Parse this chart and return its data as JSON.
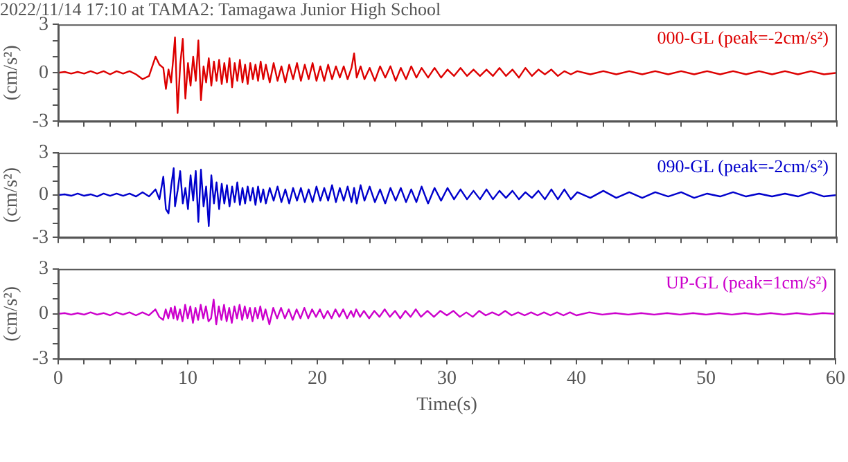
{
  "chart_data": [
    {
      "type": "line",
      "title": "2022/11/14 17:10 at TAMA2: Tamagawa Junior High School",
      "ylabel": "(cm/s²)",
      "annotations": [
        "000-GL (peak=-2cm/s²)"
      ],
      "tick_labels": "y",
      "xlim": [
        0,
        60
      ],
      "ylim": [
        -3,
        3
      ],
      "xticks": [
        0,
        {
          "value": 2,
          "label": null
        },
        {
          "value": 4,
          "label": null
        },
        {
          "value": 6,
          "label": null
        },
        {
          "value": 8,
          "label": null
        },
        10,
        {
          "value": 12,
          "label": null
        },
        {
          "value": 14,
          "label": null
        },
        {
          "value": 16,
          "label": null
        },
        {
          "value": 18,
          "label": null
        },
        20,
        {
          "value": 22,
          "label": null
        },
        {
          "value": 24,
          "label": null
        },
        {
          "value": 26,
          "label": null
        },
        {
          "value": 28,
          "label": null
        },
        30,
        {
          "value": 32,
          "label": null
        },
        {
          "value": 34,
          "label": null
        },
        {
          "value": 36,
          "label": null
        },
        {
          "value": 38,
          "label": null
        },
        40,
        {
          "value": 42,
          "label": null
        },
        {
          "value": 44,
          "label": null
        },
        {
          "value": 46,
          "label": null
        },
        {
          "value": 48,
          "label": null
        },
        50,
        {
          "value": 52,
          "label": null
        },
        {
          "value": 54,
          "label": null
        },
        {
          "value": 56,
          "label": null
        },
        {
          "value": 58,
          "label": null
        },
        60
      ],
      "yticks": [
        -3,
        {
          "value": -2,
          "label": null
        },
        {
          "value": -1,
          "label": null
        },
        0,
        {
          "value": 1,
          "label": null
        },
        {
          "value": 2,
          "label": null
        },
        3
      ],
      "x": [
        0,
        0.5,
        1,
        1.5,
        2,
        2.5,
        3,
        3.5,
        4,
        4.5,
        5,
        5.5,
        6,
        6.5,
        7,
        7.5,
        7.8,
        8.1,
        8.3,
        8.5,
        8.7,
        8.9,
        9,
        9.2,
        9.4,
        9.6,
        9.8,
        10,
        10.2,
        10.4,
        10.6,
        10.8,
        11,
        11.2,
        11.4,
        11.6,
        11.8,
        12,
        12.2,
        12.4,
        12.6,
        12.8,
        13,
        13.2,
        13.4,
        13.6,
        13.8,
        14,
        14.2,
        14.4,
        14.6,
        14.8,
        15,
        15.2,
        15.4,
        15.6,
        15.8,
        16,
        16.3,
        16.6,
        16.9,
        17.2,
        17.5,
        17.8,
        18.1,
        18.4,
        18.7,
        19,
        19.3,
        19.6,
        19.9,
        20.2,
        20.5,
        20.8,
        21.1,
        21.4,
        21.7,
        22,
        22.3,
        22.6,
        22.8,
        23,
        23.3,
        23.6,
        24,
        24.4,
        24.8,
        25.2,
        25.6,
        26,
        26.4,
        26.8,
        27.2,
        27.6,
        28,
        28.5,
        29,
        29.5,
        30,
        30.5,
        31,
        31.5,
        32,
        32.5,
        33,
        33.5,
        34,
        34.5,
        35,
        35.5,
        36,
        36.5,
        37,
        37.5,
        38,
        38.5,
        39,
        39.5,
        40,
        41,
        42,
        43,
        44,
        45,
        46,
        47,
        48,
        49,
        50,
        51,
        52,
        53,
        54,
        55,
        56,
        57,
        58,
        59,
        60
      ],
      "series": [
        {
          "color": "#dd0000",
          "values": [
            0,
            0.05,
            -0.05,
            0.05,
            -0.05,
            0.1,
            -0.05,
            0.1,
            -0.1,
            0.1,
            -0.05,
            0.1,
            -0.1,
            -0.4,
            -0.2,
            1.0,
            0.5,
            0.3,
            -1.0,
            0.2,
            -0.6,
            1.2,
            2.2,
            -2.5,
            0.5,
            2.1,
            -1.6,
            0.6,
            -0.8,
            1.0,
            -0.5,
            2.0,
            -1.7,
            0.4,
            -0.6,
            0.9,
            -0.8,
            0.7,
            -0.5,
            0.8,
            -0.7,
            0.6,
            -0.6,
            0.9,
            -0.9,
            0.6,
            -0.5,
            0.8,
            -0.6,
            0.5,
            -0.7,
            0.6,
            -0.4,
            0.5,
            -0.5,
            0.7,
            -0.4,
            0.5,
            -0.6,
            0.6,
            -0.5,
            0.4,
            -0.6,
            0.5,
            -0.4,
            0.6,
            -0.5,
            0.5,
            -0.4,
            0.6,
            -0.5,
            0.4,
            -0.5,
            0.5,
            -0.4,
            0.4,
            -0.3,
            0.4,
            -0.4,
            0.3,
            1.2,
            -0.3,
            0.4,
            -0.4,
            0.3,
            -0.5,
            0.4,
            -0.3,
            0.4,
            -0.5,
            0.3,
            -0.4,
            0.4,
            -0.3,
            0.3,
            -0.3,
            0.3,
            -0.3,
            0.2,
            -0.2,
            0.3,
            -0.2,
            0.2,
            -0.2,
            0.2,
            -0.2,
            0.3,
            -0.2,
            0.2,
            -0.3,
            0.3,
            -0.2,
            0.2,
            -0.1,
            0.2,
            -0.2,
            0.1,
            -0.1,
            0.1,
            -0.1,
            0.1,
            -0.1,
            0.1,
            -0.1,
            0.1,
            -0.1,
            0.1,
            -0.1,
            0.1,
            -0.1,
            0.1,
            -0.1,
            0.1,
            -0.1,
            0.1,
            -0.1,
            0.1,
            -0.1,
            0
          ]
        }
      ]
    },
    {
      "type": "line",
      "ylabel": "(cm/s²)",
      "annotations": [
        "090-GL (peak=-2cm/s²)"
      ],
      "tick_labels": "y",
      "xlim": [
        0,
        60
      ],
      "ylim": [
        -3,
        3
      ],
      "xticks": [
        0,
        {
          "value": 2,
          "label": null
        },
        {
          "value": 4,
          "label": null
        },
        {
          "value": 6,
          "label": null
        },
        {
          "value": 8,
          "label": null
        },
        10,
        {
          "value": 12,
          "label": null
        },
        {
          "value": 14,
          "label": null
        },
        {
          "value": 16,
          "label": null
        },
        {
          "value": 18,
          "label": null
        },
        20,
        {
          "value": 22,
          "label": null
        },
        {
          "value": 24,
          "label": null
        },
        {
          "value": 26,
          "label": null
        },
        {
          "value": 28,
          "label": null
        },
        30,
        {
          "value": 32,
          "label": null
        },
        {
          "value": 34,
          "label": null
        },
        {
          "value": 36,
          "label": null
        },
        {
          "value": 38,
          "label": null
        },
        40,
        {
          "value": 42,
          "label": null
        },
        {
          "value": 44,
          "label": null
        },
        {
          "value": 46,
          "label": null
        },
        {
          "value": 48,
          "label": null
        },
        50,
        {
          "value": 52,
          "label": null
        },
        {
          "value": 54,
          "label": null
        },
        {
          "value": 56,
          "label": null
        },
        {
          "value": 58,
          "label": null
        },
        60
      ],
      "yticks": [
        -3,
        {
          "value": -2,
          "label": null
        },
        {
          "value": -1,
          "label": null
        },
        0,
        {
          "value": 1,
          "label": null
        },
        {
          "value": 2,
          "label": null
        },
        3
      ],
      "x": [
        0,
        0.5,
        1,
        1.5,
        2,
        2.5,
        3,
        3.5,
        4,
        4.5,
        5,
        5.5,
        6,
        6.5,
        7,
        7.5,
        7.8,
        8.1,
        8.3,
        8.5,
        8.7,
        8.9,
        9,
        9.2,
        9.4,
        9.6,
        9.8,
        10,
        10.2,
        10.4,
        10.6,
        10.8,
        11,
        11.2,
        11.4,
        11.6,
        11.8,
        12,
        12.2,
        12.4,
        12.6,
        12.8,
        13,
        13.2,
        13.4,
        13.6,
        13.8,
        14,
        14.2,
        14.4,
        14.6,
        14.8,
        15,
        15.2,
        15.4,
        15.6,
        15.8,
        16,
        16.3,
        16.6,
        16.9,
        17.2,
        17.5,
        17.8,
        18.1,
        18.4,
        18.7,
        19,
        19.3,
        19.6,
        19.9,
        20.2,
        20.5,
        20.8,
        21.1,
        21.4,
        21.7,
        22,
        22.3,
        22.6,
        22.8,
        23,
        23.3,
        23.6,
        24,
        24.4,
        24.8,
        25.2,
        25.6,
        26,
        26.4,
        26.8,
        27.2,
        27.6,
        28,
        28.5,
        29,
        29.5,
        30,
        30.5,
        31,
        31.5,
        32,
        32.5,
        33,
        33.5,
        34,
        34.5,
        35,
        35.5,
        36,
        36.5,
        37,
        37.5,
        38,
        38.5,
        39,
        39.5,
        40,
        41,
        42,
        43,
        44,
        45,
        46,
        47,
        48,
        49,
        50,
        51,
        52,
        53,
        54,
        55,
        56,
        57,
        58,
        59,
        60
      ],
      "series": [
        {
          "color": "#0000cc",
          "values": [
            0,
            0.05,
            -0.05,
            0.1,
            -0.05,
            0.05,
            -0.1,
            0.1,
            -0.05,
            0.1,
            -0.05,
            0.1,
            -0.1,
            0.2,
            -0.1,
            0.4,
            -0.3,
            1.3,
            -1.0,
            -1.3,
            0.6,
            1.9,
            -0.8,
            0.3,
            1.7,
            -0.6,
            0.5,
            -1.0,
            1.4,
            -0.4,
            1.7,
            -1.9,
            1.8,
            -0.8,
            0.6,
            -2.2,
            1.4,
            -0.6,
            0.9,
            -1.0,
            0.8,
            -0.6,
            0.7,
            -0.8,
            0.6,
            -0.5,
            0.9,
            -0.7,
            0.5,
            -0.6,
            0.6,
            -0.4,
            0.5,
            -0.7,
            0.6,
            -0.5,
            0.4,
            -0.6,
            0.5,
            -0.4,
            0.6,
            -0.5,
            0.4,
            -0.6,
            0.5,
            -0.4,
            0.5,
            -0.5,
            0.4,
            -0.5,
            0.6,
            -0.4,
            0.5,
            -0.4,
            0.7,
            -0.5,
            0.5,
            -0.4,
            0.6,
            -0.5,
            0.5,
            -0.6,
            0.7,
            -0.4,
            0.6,
            -0.5,
            0.4,
            -0.6,
            0.5,
            -0.4,
            0.5,
            -0.5,
            0.4,
            -0.5,
            0.6,
            -0.6,
            0.5,
            -0.4,
            0.5,
            -0.3,
            0.4,
            -0.3,
            0.3,
            -0.3,
            0.4,
            -0.3,
            0.3,
            -0.2,
            0.3,
            -0.3,
            0.2,
            -0.2,
            0.3,
            -0.3,
            0.4,
            -0.3,
            0.4,
            -0.3,
            0.2,
            -0.2,
            0.3,
            -0.2,
            0.2,
            -0.2,
            0.2,
            -0.1,
            0.2,
            -0.2,
            0.1,
            -0.1,
            0.2,
            -0.1,
            0.1,
            -0.1,
            0.1,
            -0.1,
            0.2,
            -0.1,
            0
          ]
        }
      ]
    },
    {
      "type": "line",
      "xlabel": "Time(s)",
      "ylabel": "(cm/s²)",
      "annotations": [
        "UP-GL (peak=1cm/s²)"
      ],
      "xlim": [
        0,
        60
      ],
      "ylim": [
        -3,
        3
      ],
      "xticks": [
        0,
        {
          "value": 2,
          "label": null
        },
        {
          "value": 4,
          "label": null
        },
        {
          "value": 6,
          "label": null
        },
        {
          "value": 8,
          "label": null
        },
        10,
        {
          "value": 12,
          "label": null
        },
        {
          "value": 14,
          "label": null
        },
        {
          "value": 16,
          "label": null
        },
        {
          "value": 18,
          "label": null
        },
        20,
        {
          "value": 22,
          "label": null
        },
        {
          "value": 24,
          "label": null
        },
        {
          "value": 26,
          "label": null
        },
        {
          "value": 28,
          "label": null
        },
        30,
        {
          "value": 32,
          "label": null
        },
        {
          "value": 34,
          "label": null
        },
        {
          "value": 36,
          "label": null
        },
        {
          "value": 38,
          "label": null
        },
        40,
        {
          "value": 42,
          "label": null
        },
        {
          "value": 44,
          "label": null
        },
        {
          "value": 46,
          "label": null
        },
        {
          "value": 48,
          "label": null
        },
        50,
        {
          "value": 52,
          "label": null
        },
        {
          "value": 54,
          "label": null
        },
        {
          "value": 56,
          "label": null
        },
        {
          "value": 58,
          "label": null
        },
        60
      ],
      "yticks": [
        -3,
        {
          "value": -2,
          "label": null
        },
        {
          "value": -1,
          "label": null
        },
        0,
        {
          "value": 1,
          "label": null
        },
        {
          "value": 2,
          "label": null
        },
        3
      ],
      "x": [
        0,
        0.5,
        1,
        1.5,
        2,
        2.5,
        3,
        3.5,
        4,
        4.5,
        5,
        5.5,
        6,
        6.5,
        7,
        7.5,
        7.8,
        8.1,
        8.3,
        8.5,
        8.7,
        8.9,
        9,
        9.2,
        9.4,
        9.6,
        9.8,
        10,
        10.2,
        10.4,
        10.6,
        10.8,
        11,
        11.2,
        11.4,
        11.6,
        11.8,
        12,
        12.2,
        12.4,
        12.6,
        12.8,
        13,
        13.2,
        13.4,
        13.6,
        13.8,
        14,
        14.2,
        14.4,
        14.6,
        14.8,
        15,
        15.2,
        15.4,
        15.6,
        15.8,
        16,
        16.3,
        16.6,
        16.9,
        17.2,
        17.5,
        17.8,
        18.1,
        18.4,
        18.7,
        19,
        19.3,
        19.6,
        19.9,
        20.2,
        20.5,
        20.8,
        21.1,
        21.4,
        21.7,
        22,
        22.3,
        22.6,
        22.8,
        23,
        23.3,
        23.6,
        24,
        24.4,
        24.8,
        25.2,
        25.6,
        26,
        26.4,
        26.8,
        27.2,
        27.6,
        28,
        28.5,
        29,
        29.5,
        30,
        30.5,
        31,
        31.5,
        32,
        32.5,
        33,
        33.5,
        34,
        34.5,
        35,
        35.5,
        36,
        36.5,
        37,
        37.5,
        38,
        38.5,
        39,
        39.5,
        40,
        41,
        42,
        43,
        44,
        45,
        46,
        47,
        48,
        49,
        50,
        51,
        52,
        53,
        54,
        55,
        56,
        57,
        58,
        59,
        60
      ],
      "series": [
        {
          "color": "#cc00cc",
          "values": [
            0,
            0.05,
            -0.05,
            0.05,
            -0.05,
            0.1,
            -0.05,
            0.05,
            -0.1,
            0.1,
            -0.05,
            0.1,
            -0.1,
            0.1,
            -0.1,
            0.3,
            -0.2,
            -0.4,
            0.3,
            -0.3,
            0.4,
            -0.3,
            0.5,
            -0.4,
            0.3,
            -0.5,
            0.6,
            -0.3,
            0.5,
            -0.6,
            0.4,
            -0.4,
            0.6,
            -0.3,
            0.5,
            -0.5,
            -0.3,
            0.96,
            -0.7,
            0.5,
            -0.4,
            0.6,
            -0.5,
            0.4,
            -0.6,
            0.5,
            -0.3,
            0.6,
            -0.4,
            0.5,
            -0.3,
            0.4,
            -0.5,
            0.4,
            -0.3,
            0.5,
            -0.4,
            0.3,
            -0.7,
            0.4,
            -0.3,
            0.4,
            -0.3,
            0.3,
            -0.4,
            0.3,
            -0.3,
            0.4,
            -0.3,
            0.3,
            -0.2,
            0.3,
            -0.3,
            0.2,
            -0.3,
            0.3,
            -0.2,
            0.3,
            -0.3,
            0.2,
            -0.2,
            0.3,
            -0.2,
            0.2,
            -0.3,
            0.2,
            -0.2,
            0.3,
            -0.2,
            0.2,
            -0.3,
            0.2,
            -0.2,
            0.3,
            -0.2,
            0.2,
            -0.2,
            0.2,
            -0.1,
            0.2,
            -0.2,
            0.1,
            -0.2,
            0.2,
            -0.1,
            0.1,
            -0.1,
            0.2,
            -0.1,
            0.1,
            -0.1,
            0.1,
            -0.1,
            0.1,
            -0.1,
            0.1,
            -0.1,
            0.1,
            -0.1,
            0.1,
            -0.05,
            0.05,
            -0.05,
            0.05,
            -0.05,
            0.05,
            -0.05,
            0.05,
            -0.05,
            0.05,
            -0.05,
            0.05,
            -0.05,
            0.05,
            -0.05,
            0.05,
            -0.05,
            0.05,
            0
          ]
        }
      ]
    }
  ]
}
